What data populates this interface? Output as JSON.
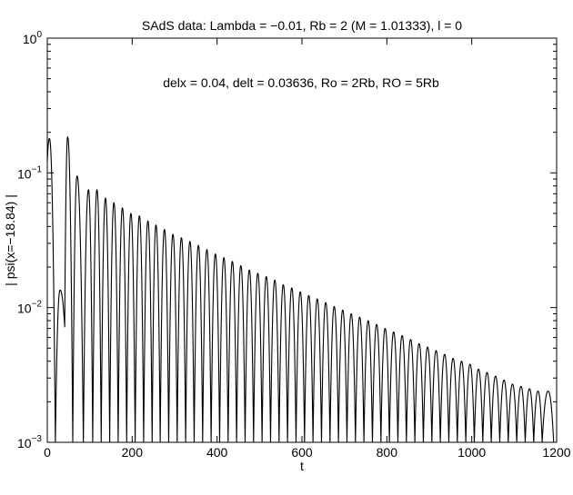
{
  "chart_data": {
    "type": "line",
    "title": "SAdS data: Lambda = −0.01, Rb = 2 (M = 1.01333), l = 0",
    "annotation": "delx = 0.04, delt = 0.03636, Ro = 2Rb, RO = 5Rb",
    "xlabel": "t",
    "ylabel": "| psi(x=−18.84) |",
    "xlim": [
      0,
      1200
    ],
    "ylim": [
      0.001,
      1
    ],
    "yscale": "log",
    "grid": false,
    "x_ticks": [
      0,
      200,
      400,
      600,
      800,
      1000,
      1200
    ],
    "x_tick_labels": [
      "0",
      "200",
      "400",
      "600",
      "800",
      "1000",
      "1200"
    ],
    "y_ticks": [
      0.001,
      0.01,
      0.1,
      1
    ],
    "y_tick_labels": [
      {
        "base": "10",
        "exp": "−3"
      },
      {
        "base": "10",
        "exp": "−2"
      },
      {
        "base": "10",
        "exp": "−1"
      },
      {
        "base": "10",
        "exp": "0"
      }
    ],
    "series": [
      {
        "color": "#000000",
        "peak_t": [
          5,
          30,
          48,
          70,
          97,
          117,
          137,
          157,
          177,
          197,
          217,
          237,
          256,
          276,
          296,
          316,
          336,
          356,
          376,
          396,
          416,
          436,
          456,
          476,
          496,
          516,
          536,
          556,
          576,
          596,
          616,
          636,
          656,
          676,
          696,
          716,
          736,
          756,
          776,
          796,
          816,
          836,
          856,
          876,
          896,
          916,
          936,
          956,
          976,
          996,
          1016,
          1036,
          1056,
          1076,
          1096,
          1116,
          1136,
          1156,
          1180
        ],
        "peak_psi": [
          0.18,
          0.0135,
          0.185,
          0.095,
          0.075,
          0.075,
          0.065,
          0.06,
          0.055,
          0.05,
          0.048,
          0.044,
          0.041,
          0.038,
          0.035,
          0.033,
          0.031,
          0.029,
          0.027,
          0.025,
          0.0235,
          0.022,
          0.0205,
          0.019,
          0.018,
          0.017,
          0.016,
          0.0148,
          0.014,
          0.0131,
          0.0123,
          0.0116,
          0.0109,
          0.0102,
          0.0096,
          0.009,
          0.0085,
          0.008,
          0.0075,
          0.007,
          0.0066,
          0.0062,
          0.0058,
          0.0054,
          0.0051,
          0.0048,
          0.0045,
          0.0042,
          0.004,
          0.0038,
          0.0035,
          0.0033,
          0.0031,
          0.0029,
          0.0027,
          0.0026,
          0.0025,
          0.0024,
          0.0024
        ],
        "zero_t": [
          19,
          41,
          60,
          85,
          107,
          127,
          147,
          167,
          187,
          207,
          227,
          247,
          266,
          286,
          306,
          326,
          346,
          366,
          386,
          406,
          426,
          446,
          466,
          486,
          506,
          526,
          546,
          566,
          586,
          606,
          626,
          646,
          666,
          686,
          706,
          726,
          746,
          766,
          786,
          806,
          826,
          846,
          866,
          886,
          906,
          926,
          946,
          966,
          986,
          1006,
          1026,
          1046,
          1066,
          1086,
          1106,
          1126,
          1146,
          1166,
          1193
        ],
        "zero_psi": [
          0.001,
          0.0072,
          0.001,
          0.001,
          0.001,
          0.001,
          0.001,
          0.001,
          0.001,
          0.001,
          0.001,
          0.001,
          0.001,
          0.001,
          0.001,
          0.001,
          0.001,
          0.001,
          0.001,
          0.001,
          0.001,
          0.001,
          0.001,
          0.001,
          0.001,
          0.001,
          0.001,
          0.001,
          0.001,
          0.001,
          0.001,
          0.001,
          0.001,
          0.001,
          0.001,
          0.001,
          0.001,
          0.001,
          0.001,
          0.001,
          0.001,
          0.001,
          0.001,
          0.001,
          0.001,
          0.001,
          0.001,
          0.001,
          0.001,
          0.001,
          0.001,
          0.001,
          0.001,
          0.001,
          0.001,
          0.001,
          0.001,
          0.001,
          0.001
        ],
        "start": {
          "t": 0,
          "psi": 0.12
        }
      }
    ]
  }
}
